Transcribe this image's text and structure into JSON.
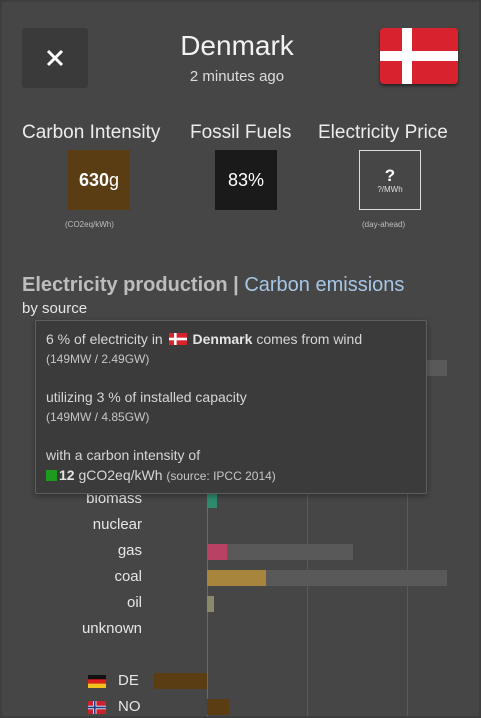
{
  "header": {
    "title": "Denmark",
    "subtitle": "2 minutes ago",
    "close_icon": "close-icon",
    "flag_icon": "flag-denmark-icon"
  },
  "metrics": {
    "carbon": {
      "title": "Carbon Intensity",
      "value": "630",
      "unit": "g",
      "sublabel": "(CO2eq/kWh)"
    },
    "fossil": {
      "title": "Fossil Fuels",
      "value": "83%"
    },
    "price": {
      "title": "Electricity Price",
      "value": "?",
      "unit": "?/MWh",
      "sublabel": "(day-ahead)"
    }
  },
  "section": {
    "title": "Electricity production",
    "separator": " | ",
    "link": "Carbon emissions",
    "subtitle": "by source"
  },
  "production_rows": [
    {
      "label": "biomass",
      "color": "#2e8b6e"
    },
    {
      "label": "nuclear",
      "color": "#a0a0a0"
    },
    {
      "label": "gas",
      "color": "#b94164"
    },
    {
      "label": "coal",
      "color": "#a8853c"
    },
    {
      "label": "oil",
      "color": "#8a8a6a"
    },
    {
      "label": "unknown",
      "color": "#8a8a8a"
    }
  ],
  "exchanges": [
    {
      "label": "DE",
      "color": "#5b3d14"
    },
    {
      "label": "NO",
      "color": "#5b3d14"
    }
  ],
  "tooltip": {
    "line1_pre": "6 % of electricity in",
    "line1_country": "Denmark",
    "line1_post": "comes from wind",
    "line1_detail": "(149MW / 2.49GW)",
    "line2": "utilizing 3 % of installed capacity",
    "line2_detail": "(149MW / 4.85GW)",
    "line3": "with a carbon intensity of",
    "line4_value": "12",
    "line4_unit": "gCO2eq/kWh",
    "line4_source": "(source: IPCC 2014)"
  }
}
